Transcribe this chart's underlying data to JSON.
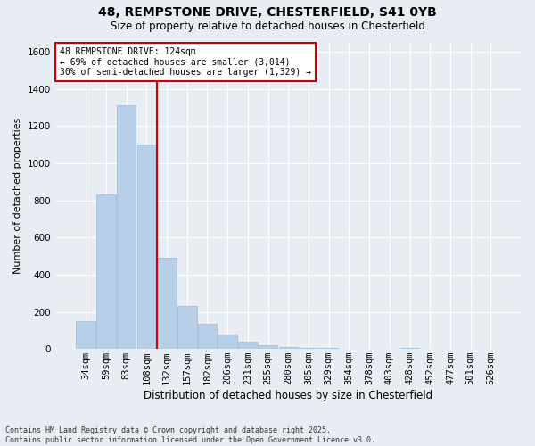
{
  "title1": "48, REMPSTONE DRIVE, CHESTERFIELD, S41 0YB",
  "title2": "Size of property relative to detached houses in Chesterfield",
  "xlabel": "Distribution of detached houses by size in Chesterfield",
  "ylabel": "Number of detached properties",
  "footer": "Contains HM Land Registry data © Crown copyright and database right 2025.\nContains public sector information licensed under the Open Government Licence v3.0.",
  "categories": [
    "34sqm",
    "59sqm",
    "83sqm",
    "108sqm",
    "132sqm",
    "157sqm",
    "182sqm",
    "206sqm",
    "231sqm",
    "255sqm",
    "280sqm",
    "305sqm",
    "329sqm",
    "354sqm",
    "378sqm",
    "403sqm",
    "428sqm",
    "452sqm",
    "477sqm",
    "501sqm",
    "526sqm"
  ],
  "values": [
    150,
    830,
    1310,
    1100,
    490,
    230,
    135,
    80,
    40,
    20,
    10,
    5,
    5,
    2,
    2,
    0,
    5,
    0,
    0,
    0,
    0
  ],
  "bar_color": "#b8cfe8",
  "bar_edge_color": "#9ab8d8",
  "bg_color": "#e8edf4",
  "grid_color": "#ffffff",
  "vline_x": 3.5,
  "vline_color": "#cc0000",
  "annotation_text": "48 REMPSTONE DRIVE: 124sqm\n← 69% of detached houses are smaller (3,014)\n30% of semi-detached houses are larger (1,329) →",
  "annotation_box_color": "#ffffff",
  "annotation_box_edge": "#cc0000",
  "ylim": [
    0,
    1650
  ],
  "yticks": [
    0,
    200,
    400,
    600,
    800,
    1000,
    1200,
    1400,
    1600
  ],
  "title1_fontsize": 10,
  "title2_fontsize": 8.5,
  "xlabel_fontsize": 8.5,
  "ylabel_fontsize": 8,
  "tick_fontsize": 7.5,
  "annot_fontsize": 7,
  "footer_fontsize": 6
}
